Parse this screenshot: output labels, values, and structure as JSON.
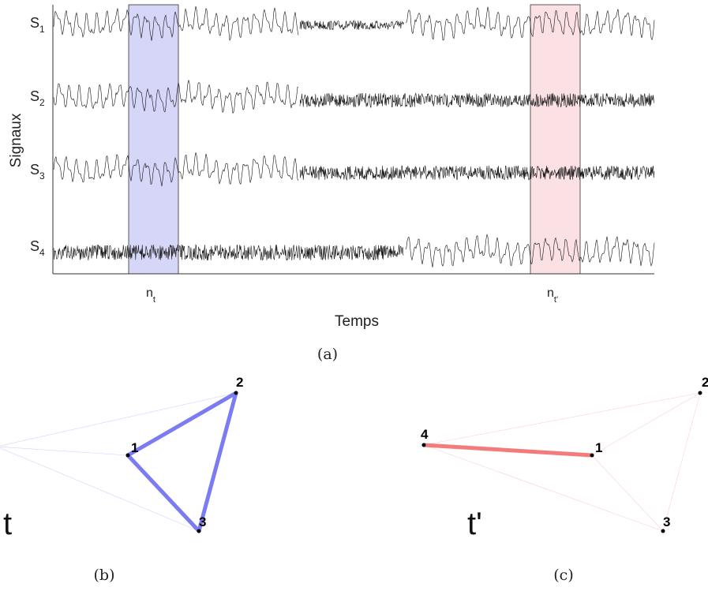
{
  "panel_a": {
    "y_axis_label": "Signaux",
    "x_axis_label": "Temps",
    "caption": "(a)",
    "signals": [
      {
        "label": "S",
        "sub": "1"
      },
      {
        "label": "S",
        "sub": "2"
      },
      {
        "label": "S",
        "sub": "3"
      },
      {
        "label": "S",
        "sub": "4"
      }
    ],
    "markers": [
      {
        "label": "n",
        "sub": "t",
        "color": "#b4b4f2"
      },
      {
        "label": "n",
        "sub": "t'",
        "color": "#f8cdd2"
      }
    ]
  },
  "panel_b": {
    "caption": "(b)",
    "time_label": "t",
    "edge_color": "#7b7bf2",
    "nodes": [
      {
        "id": "1",
        "label": "1"
      },
      {
        "id": "2",
        "label": "2"
      },
      {
        "id": "3",
        "label": "3"
      },
      {
        "id": "4",
        "label": ""
      }
    ],
    "strong_edges": [
      [
        "1",
        "2"
      ],
      [
        "2",
        "3"
      ],
      [
        "3",
        "1"
      ]
    ],
    "weak_edges": [
      [
        "4",
        "1"
      ],
      [
        "4",
        "2"
      ],
      [
        "4",
        "3"
      ]
    ]
  },
  "panel_c": {
    "caption": "(c)",
    "time_label": "t'",
    "edge_color": "#f47b7b",
    "nodes": [
      {
        "id": "1",
        "label": "1"
      },
      {
        "id": "2",
        "label": "2"
      },
      {
        "id": "3",
        "label": "3"
      },
      {
        "id": "4",
        "label": "4"
      }
    ],
    "strong_edges": [
      [
        "4",
        "1"
      ]
    ],
    "weak_edges": [
      [
        "4",
        "2"
      ],
      [
        "4",
        "3"
      ],
      [
        "1",
        "2"
      ],
      [
        "1",
        "3"
      ],
      [
        "2",
        "3"
      ]
    ]
  }
}
